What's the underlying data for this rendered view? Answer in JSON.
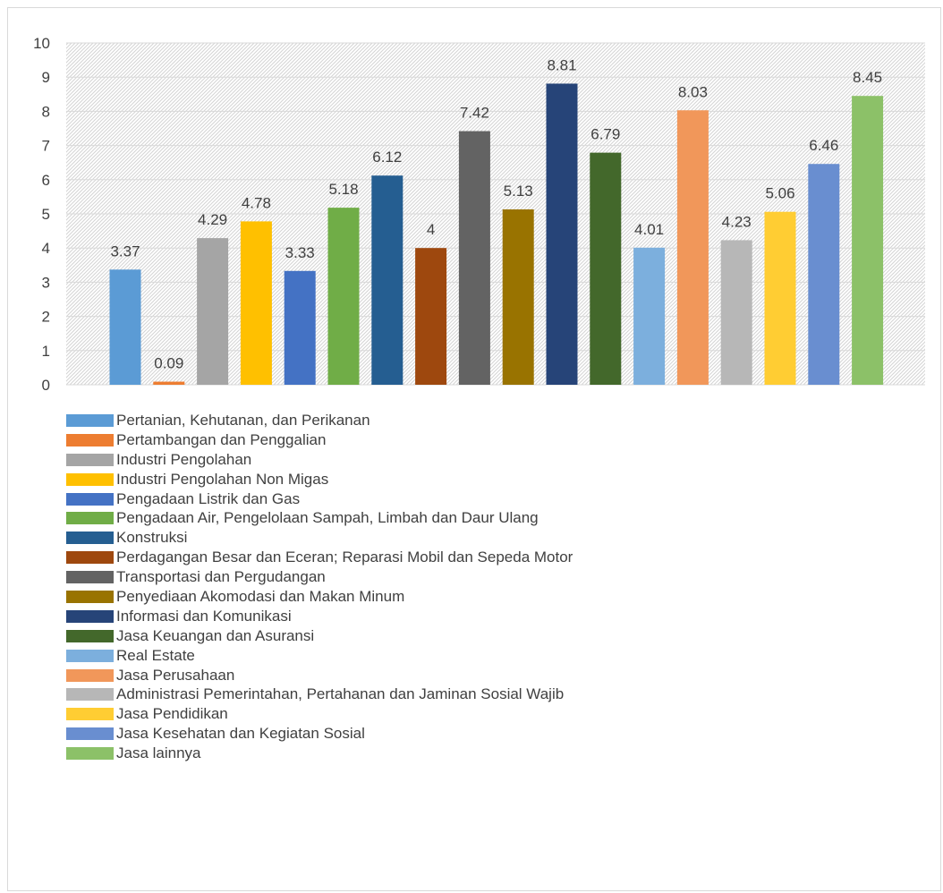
{
  "chart_data": {
    "type": "bar",
    "title": "",
    "xlabel": "",
    "ylabel": "",
    "ylim": [
      0,
      10
    ],
    "ytick_step": 1,
    "grid": true,
    "plot_background": "diagonal-hatch-light-gray",
    "legend_position": "bottom",
    "series": [
      {
        "name": "Pertanian, Kehutanan, dan Perikanan",
        "value": 3.37,
        "label": "3.37",
        "color": "#5b9bd5"
      },
      {
        "name": "Pertambangan dan Penggalian",
        "value": 0.09,
        "label": "0.09",
        "color": "#ed7d31"
      },
      {
        "name": "Industri Pengolahan",
        "value": 4.29,
        "label": "4.29",
        "color": "#a5a5a5"
      },
      {
        "name": "Industri Pengolahan Non Migas",
        "value": 4.78,
        "label": "4.78",
        "color": "#ffc000"
      },
      {
        "name": "Pengadaan Listrik dan Gas",
        "value": 3.33,
        "label": "3.33",
        "color": "#4472c4"
      },
      {
        "name": "Pengadaan Air, Pengelolaan Sampah, Limbah dan Daur Ulang",
        "value": 5.18,
        "label": "5.18",
        "color": "#70ad47"
      },
      {
        "name": "Konstruksi",
        "value": 6.12,
        "label": "6.12",
        "color": "#255e91"
      },
      {
        "name": "Perdagangan Besar dan Eceran; Reparasi Mobil dan Sepeda Motor",
        "value": 4,
        "label": "4",
        "color": "#9e480e"
      },
      {
        "name": "Transportasi dan Pergudangan",
        "value": 7.42,
        "label": "7.42",
        "color": "#636363"
      },
      {
        "name": "Penyediaan Akomodasi dan Makan Minum",
        "value": 5.13,
        "label": "5.13",
        "color": "#997300"
      },
      {
        "name": "Informasi dan Komunikasi",
        "value": 8.81,
        "label": "8.81",
        "color": "#264478"
      },
      {
        "name": "Jasa Keuangan dan Asuransi",
        "value": 6.79,
        "label": "6.79",
        "color": "#43682b"
      },
      {
        "name": "Real Estate",
        "value": 4.01,
        "label": "4.01",
        "color": "#7cafdd"
      },
      {
        "name": "Jasa Perusahaan",
        "value": 8.03,
        "label": "8.03",
        "color": "#f1975a"
      },
      {
        "name": "Administrasi Pemerintahan, Pertahanan dan Jaminan Sosial Wajib",
        "value": 4.23,
        "label": "4.23",
        "color": "#b7b7b7"
      },
      {
        "name": "Jasa Pendidikan",
        "value": 5.06,
        "label": "5.06",
        "color": "#ffcd33"
      },
      {
        "name": "Jasa Kesehatan dan Kegiatan Sosial",
        "value": 6.46,
        "label": "6.46",
        "color": "#698ed0"
      },
      {
        "name": "Jasa lainnya",
        "value": 8.45,
        "label": "8.45",
        "color": "#8cc168"
      }
    ]
  }
}
